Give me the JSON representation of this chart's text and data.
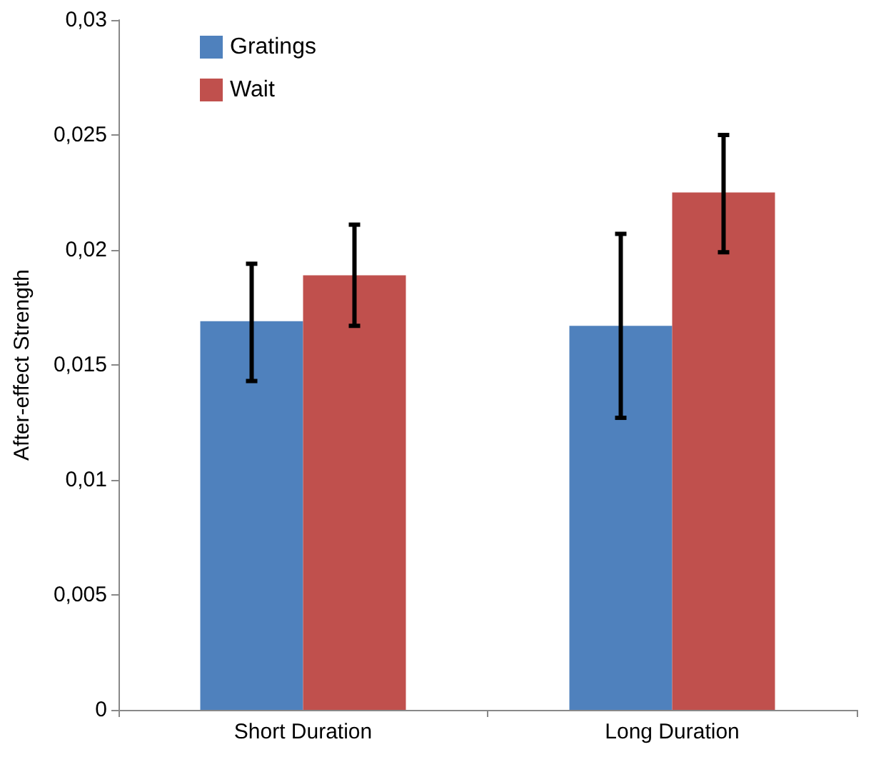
{
  "chart_data": {
    "type": "bar",
    "ylabel": "After-effect Strength",
    "categories": [
      "Short Duration",
      "Long Duration"
    ],
    "series": [
      {
        "name": "Gratings",
        "color": "#4f81bd",
        "values": [
          0.0169,
          0.0167
        ],
        "errors": [
          [
            0.0143,
            0.0194
          ],
          [
            0.0127,
            0.0207
          ]
        ]
      },
      {
        "name": "Wait",
        "color": "#c0504d",
        "values": [
          0.0189,
          0.0225
        ],
        "errors": [
          [
            0.0167,
            0.0211
          ],
          [
            0.0199,
            0.025
          ]
        ]
      }
    ],
    "ylim": [
      0,
      0.03
    ],
    "yticks": [
      0,
      {
        "value": 0.005,
        "label": "0,005"
      },
      {
        "value": 0.01,
        "label": "0,01"
      },
      {
        "value": 0.015,
        "label": "0,015"
      },
      {
        "value": 0.02,
        "label": "0,02"
      },
      {
        "value": 0.025,
        "label": "0,025"
      },
      {
        "value": 0.03,
        "label": "0,03"
      }
    ],
    "grid": false,
    "legend": "top left"
  }
}
